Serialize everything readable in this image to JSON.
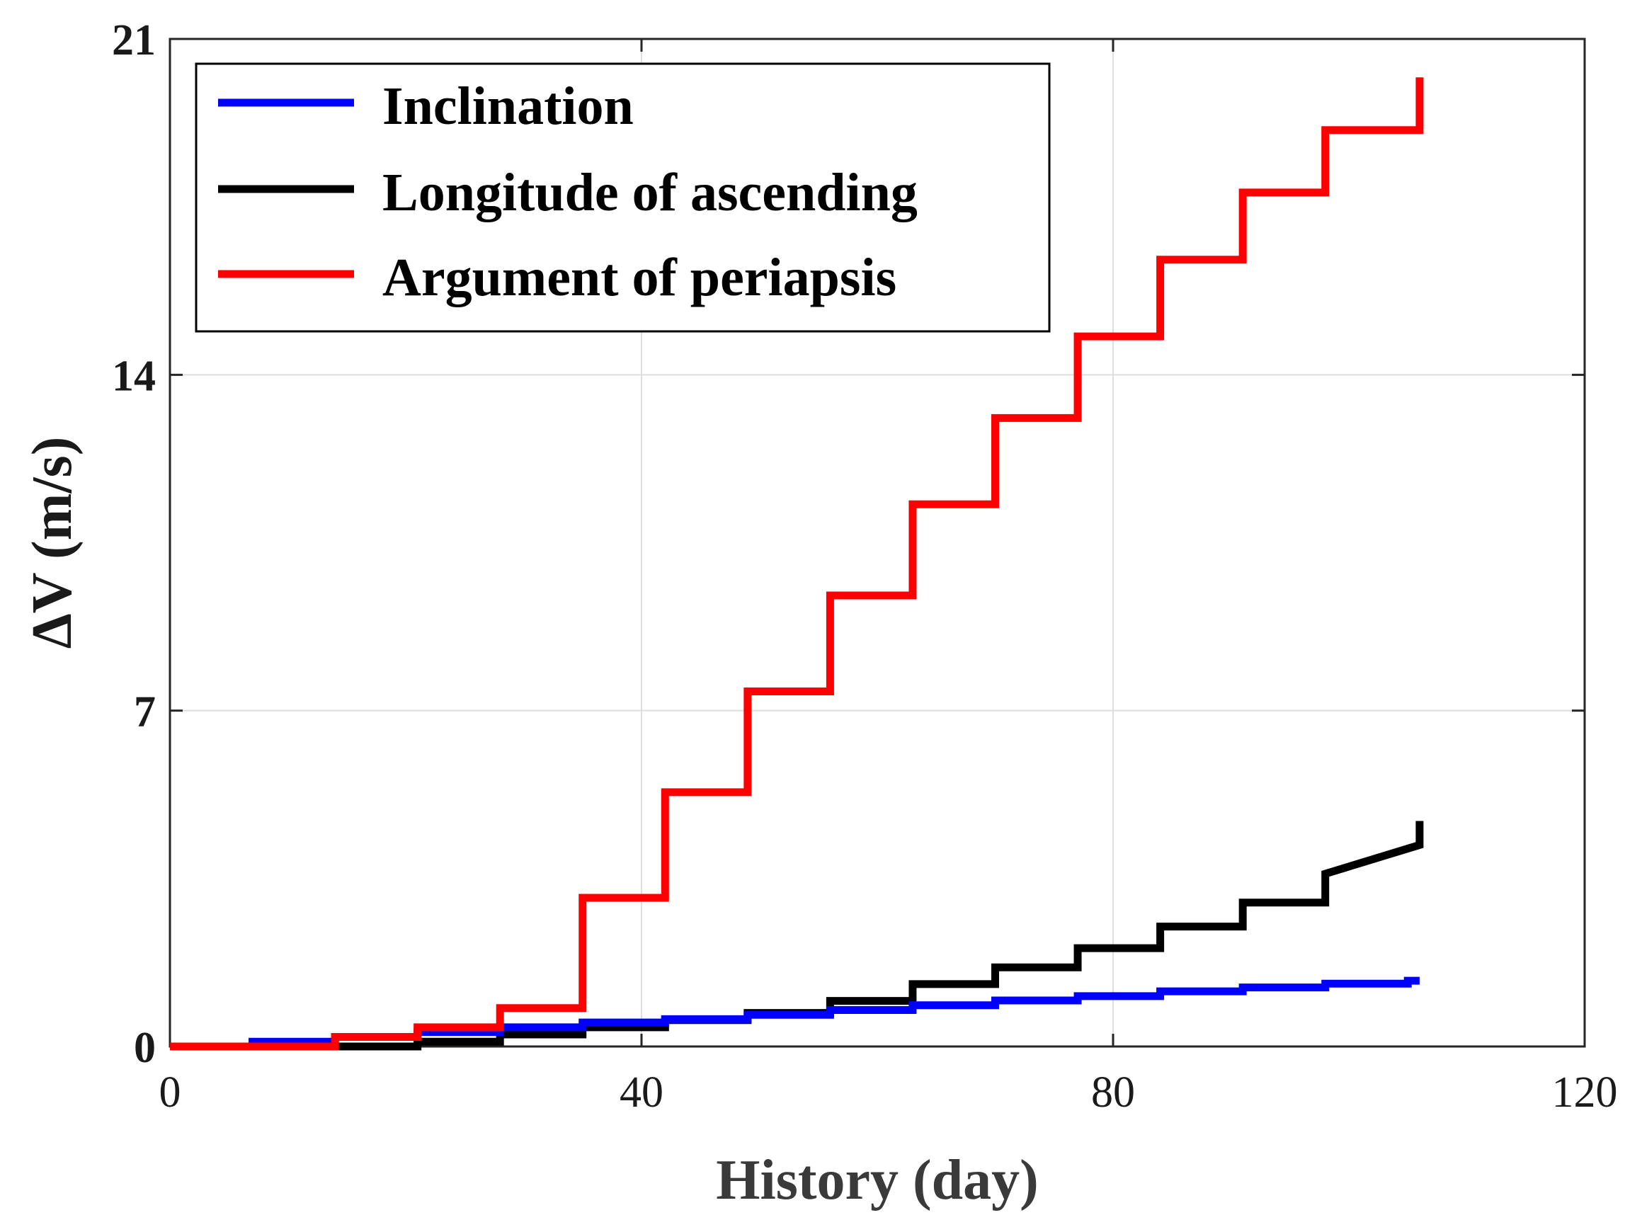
{
  "chart_data": {
    "type": "line",
    "step": true,
    "xlabel": "History (day)",
    "ylabel": "ΔV (m/s)",
    "xlim": [
      0,
      120
    ],
    "ylim": [
      0,
      21
    ],
    "xticks": [
      0,
      40,
      80,
      120
    ],
    "yticks": [
      0,
      7,
      14,
      21
    ],
    "xtick_labels": [
      "0",
      "40",
      "80",
      "120"
    ],
    "ytick_labels": [
      "0",
      "7",
      "14",
      "21"
    ],
    "grid": true,
    "legend_position": "top-left",
    "series": [
      {
        "name": "Inclination",
        "color": "#0000ff",
        "x": [
          0,
          7,
          14,
          21,
          28,
          35,
          42,
          49,
          56,
          63,
          70,
          77,
          84,
          91,
          98,
          105,
          106
        ],
        "y": [
          0,
          0.1,
          0.2,
          0.3,
          0.4,
          0.5,
          0.57,
          0.66,
          0.76,
          0.86,
          0.96,
          1.05,
          1.15,
          1.23,
          1.31,
          1.37,
          1.37
        ]
      },
      {
        "name": "Longitude of ascending",
        "color": "#000000",
        "x": [
          0,
          7,
          14,
          21,
          28,
          35,
          42,
          49,
          56,
          63,
          70,
          77,
          84,
          91,
          98,
          106
        ],
        "y": [
          0,
          0,
          0,
          0.1,
          0.25,
          0.4,
          0.55,
          0.7,
          0.95,
          1.3,
          1.65,
          2.05,
          2.5,
          3.0,
          3.6,
          4.7
        ],
        "final_step_y": 4.2
      },
      {
        "name": "Argument of periapsis",
        "color": "#ff0000",
        "x": [
          0,
          7,
          14,
          21,
          28,
          35,
          42,
          49,
          56,
          63,
          70,
          77,
          84,
          91,
          98,
          106
        ],
        "y": [
          0,
          0,
          0.2,
          0.4,
          0.8,
          3.1,
          5.3,
          7.4,
          9.4,
          11.3,
          13.1,
          14.8,
          16.4,
          17.8,
          19.1,
          20.2
        ],
        "final_step_y": 19.1
      }
    ]
  }
}
